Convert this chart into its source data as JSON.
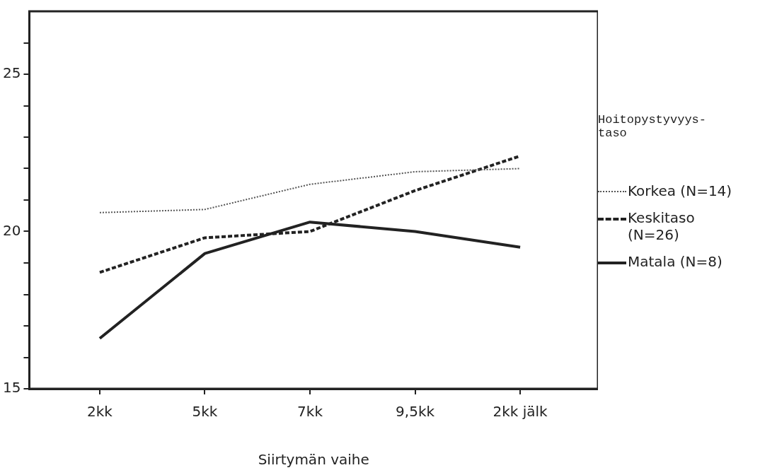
{
  "chart_data": {
    "type": "line",
    "xlabel": "Siirtymän vaihe",
    "legend_title": "Hoitopystyvyys-taso",
    "legend": "right",
    "grid": false,
    "marker": "none",
    "categories": [
      "2kk",
      "5kk",
      "7kk",
      "9,5kk",
      "2kk jälk"
    ],
    "ylim": [
      15,
      27
    ],
    "yticks": [
      15,
      {
        "value": 16,
        "label": null
      },
      {
        "value": 17,
        "label": null
      },
      {
        "value": 18,
        "label": null
      },
      {
        "value": 19,
        "label": null
      },
      20,
      {
        "value": 21,
        "label": null
      },
      {
        "value": 22,
        "label": null
      },
      {
        "value": 23,
        "label": null
      },
      {
        "value": 24,
        "label": null
      },
      25,
      {
        "value": 26,
        "label": null
      }
    ],
    "series": [
      {
        "name": "Korkea (N=14)",
        "color": "#555555",
        "line_style": "dotted",
        "values": [
          20.6,
          20.7,
          21.5,
          21.9,
          22.0
        ]
      },
      {
        "name": "Keskitaso (N=26)",
        "color": "#222222",
        "line_style": "dashed",
        "values": [
          18.7,
          19.8,
          20.0,
          21.3,
          22.4
        ]
      },
      {
        "name": "Matala (N=8)",
        "color": "#222222",
        "line_style": "solid",
        "values": [
          16.6,
          19.3,
          20.3,
          20.0,
          19.5
        ]
      }
    ]
  }
}
